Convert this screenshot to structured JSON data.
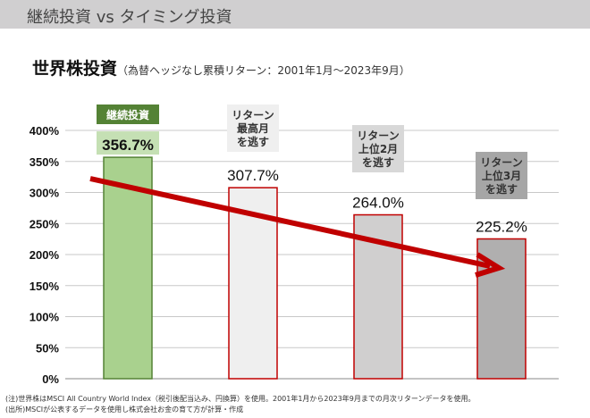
{
  "header": {
    "title": "継続投資 vs タイミング投資"
  },
  "heading": {
    "main": "世界株投資",
    "sub": "（為替ヘッジなし累積リターン：2001年1月～2023年9月）"
  },
  "chart_data": {
    "type": "bar",
    "title": "世界株投資",
    "categories": [
      "継続投資",
      "リターン最高月を逃す",
      "リターン上位2月を逃す",
      "リターン上位3月を逃す"
    ],
    "category_labels": [
      [
        "継続投資"
      ],
      [
        "リターン",
        "最高月",
        "を逃す"
      ],
      [
        "リターン",
        "上位2月",
        "を逃す"
      ],
      [
        "リターン",
        "上位3月",
        "を逃す"
      ]
    ],
    "values": [
      356.7,
      307.7,
      264.0,
      225.2
    ],
    "value_labels": [
      "356.7%",
      "307.7%",
      "264.0%",
      "225.2%"
    ],
    "ylim": [
      0,
      400
    ],
    "yticks": [
      "0%",
      "50%",
      "100%",
      "150%",
      "200%",
      "250%",
      "300%",
      "350%",
      "400%"
    ],
    "grid": true,
    "annotation": "downward trend arrow",
    "colors": {
      "bar_fills": [
        "#a9d18e",
        "#efefef",
        "#d0cfcf",
        "#b0afaf"
      ],
      "bar_strokes": [
        "#548235",
        "#c00000",
        "#c00000",
        "#c00000"
      ],
      "label_boxes": [
        "#548235",
        "#efefef",
        "#d8d8d8",
        "#a6a6a6"
      ],
      "arrow": "#c00000"
    }
  },
  "notes": [
    "(注)世界株はMSCI All Country World Index（税引後配当込み、円換算）を使用。2001年1月から2023年9月までの月次リターンデータを使用。",
    "(出所)MSCIが公表するデータを使用し株式会社お金の育て方が計算・作成"
  ]
}
